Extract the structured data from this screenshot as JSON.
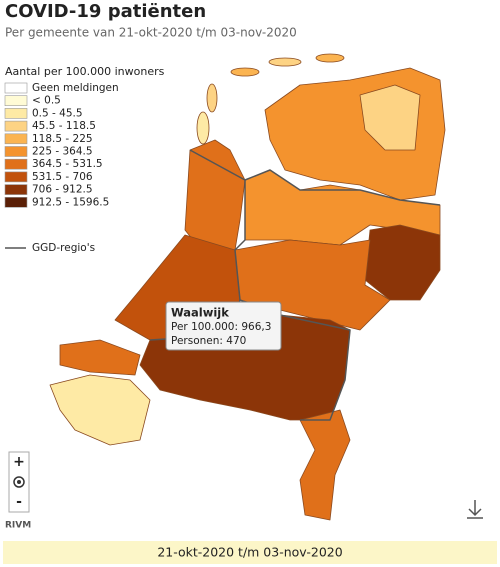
{
  "header": {
    "title": "COVID-19 patiënten",
    "subtitle": "Per gemeente van 21-okt-2020 t/m 03-nov-2020"
  },
  "legend": {
    "title": "Aantal per 100.000 inwoners",
    "items": [
      {
        "label": "Geen meldingen",
        "color": "#ffffff"
      },
      {
        "label": "< 0.5",
        "color": "#fffbd5"
      },
      {
        "label": "0.5 - 45.5",
        "color": "#feeaa5"
      },
      {
        "label": "45.5 - 118.5",
        "color": "#fdd384"
      },
      {
        "label": "118.5 - 225",
        "color": "#fbb451"
      },
      {
        "label": "225 - 364.5",
        "color": "#f4932e"
      },
      {
        "label": "364.5 - 531.5",
        "color": "#e0701a"
      },
      {
        "label": "531.5 - 706",
        "color": "#c2520c"
      },
      {
        "label": "706 - 912.5",
        "color": "#8c3508"
      },
      {
        "label": "912.5 - 1596.5",
        "color": "#5a1f06"
      }
    ],
    "region_label": "GGD-regio's"
  },
  "tooltip": {
    "title": "Waalwijk",
    "lines": [
      "Per 100.000: 966,3",
      "Personen: 470"
    ]
  },
  "controls": {
    "zoom_in": "+",
    "zoom_out": "-"
  },
  "source": "RIVM",
  "footer": {
    "date_range": "21-okt-2020 t/m 03-nov-2020"
  }
}
